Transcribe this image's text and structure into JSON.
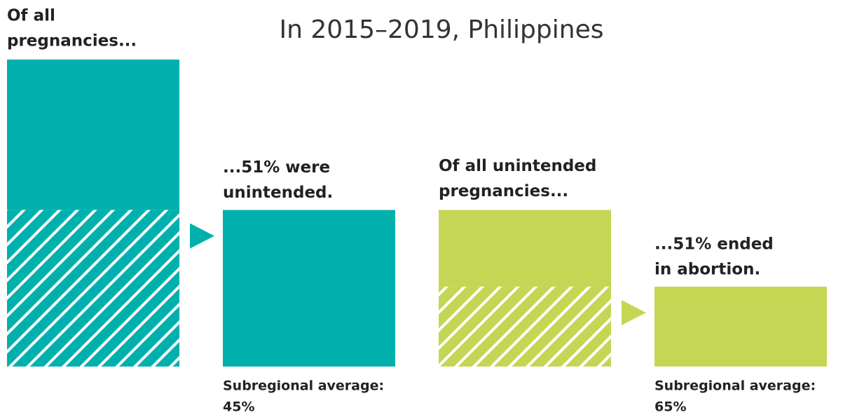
{
  "title": "In 2015–2019, Philippines",
  "panels": [
    {
      "label": [
        "Of all",
        "pregnancies..."
      ],
      "result": [
        "...51% were",
        "unintended."
      ],
      "value": 51,
      "color": "#00b0ad",
      "average_label": "Subregional average:",
      "average": "45%"
    },
    {
      "label": [
        "Of all unintended",
        "pregnancies..."
      ],
      "result": [
        "...51% ended",
        "in abortion."
      ],
      "value": 51,
      "color": "#c5d654",
      "average_label": "Subregional average:",
      "average": "65%"
    }
  ]
}
